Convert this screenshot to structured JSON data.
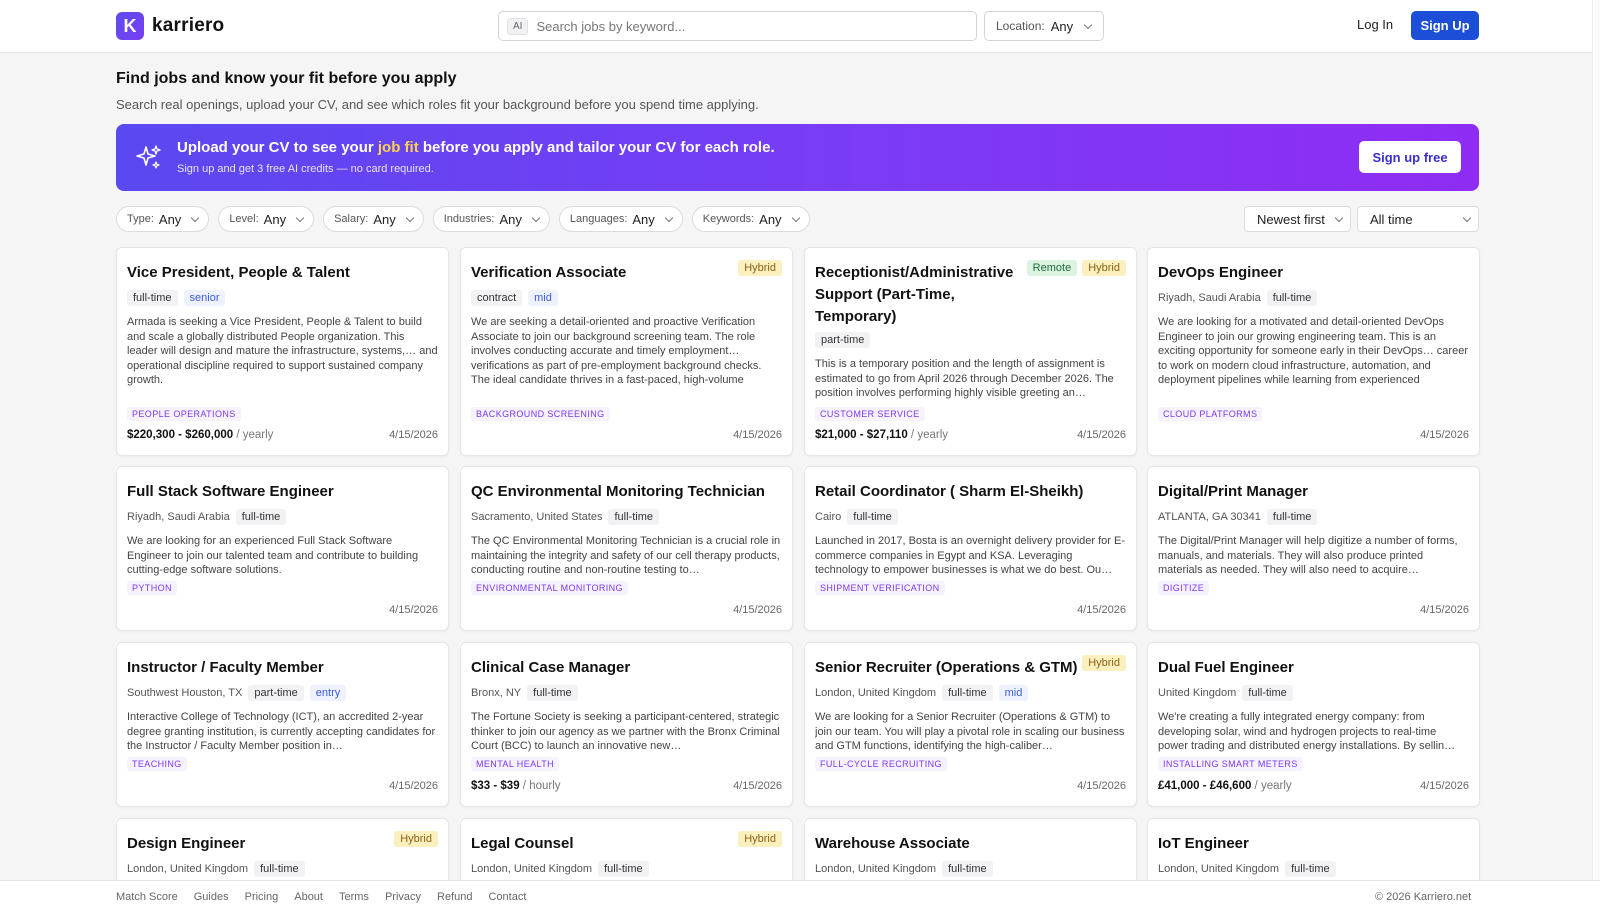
{
  "header": {
    "logo_letter": "K",
    "logo_text": "karriero",
    "search_chip": "AI",
    "search_placeholder": "Search jobs by keyword...",
    "location_label": "Location:",
    "location_value": "Any",
    "login": "Log In",
    "signup": "Sign Up"
  },
  "hero": {
    "title": "Find jobs and know your fit before you apply",
    "subtitle": "Search real openings, upload your CV, and see which roles fit your background before you spend time applying."
  },
  "banner": {
    "title_pre": "Upload your CV to see your ",
    "title_highlight": "job fit",
    "title_post": " before you apply and tailor your CV for each role.",
    "subtitle": "Sign up and get 3 free AI credits — no card required.",
    "button": "Sign up free",
    "icon": "sparkles-icon"
  },
  "filters": [
    {
      "label": "Type:",
      "value": "Any"
    },
    {
      "label": "Level:",
      "value": "Any"
    },
    {
      "label": "Salary:",
      "value": "Any"
    },
    {
      "label": "Industries:",
      "value": "Any"
    },
    {
      "label": "Languages:",
      "value": "Any"
    },
    {
      "label": "Keywords:",
      "value": "Any"
    }
  ],
  "sort": {
    "order": "Newest first",
    "range": "All time"
  },
  "jobs": [
    {
      "title": "Vice President, People & Talent",
      "badges": [],
      "location": "",
      "tags": [
        "full-time"
      ],
      "level": "senior",
      "desc": "Armada is seeking a Vice President, People & Talent to build and scale a globally distributed People organization. This leader will design and mature the infrastructure, systems,… and operational discipline required to support sustained company growth.",
      "skill": "PEOPLE OPERATIONS",
      "salary": "$220,300 - $260,000",
      "per": " / yearly",
      "date": "4/15/2026"
    },
    {
      "title": "Verification Associate",
      "badges": [
        "Hybrid"
      ],
      "location": "",
      "tags": [
        "contract"
      ],
      "level": "mid",
      "desc": "We are seeking a detail-oriented and proactive Verification Associate to join our background screening team. The role involves conducting accurate and timely employment… verifications as part of pre-employment background checks. The ideal candidate thrives in a fast-paced, high-volume environment and demonstrates strong analytical and",
      "skill": "BACKGROUND SCREENING",
      "salary": "",
      "per": "",
      "date": "4/15/2026"
    },
    {
      "title": "Receptionist/Administrative Support (Part-Time, Temporary)",
      "badges": [
        "Remote",
        "Hybrid"
      ],
      "location": "",
      "tags": [
        "part-time"
      ],
      "level": "",
      "desc": "This is a temporary position and the length of assignment is estimated to go from April 2026 through December 2026. The position involves performing highly visible greeting an…",
      "skill": "CUSTOMER SERVICE",
      "salary": "$21,000 - $27,110",
      "per": " / yearly",
      "date": "4/15/2026"
    },
    {
      "title": "DevOps Engineer",
      "badges": [],
      "location": "Riyadh, Saudi Arabia",
      "tags": [
        "full-time"
      ],
      "level": "",
      "desc": "We are looking for a motivated and detail-oriented DevOps Engineer to join our growing engineering team. This is an exciting opportunity for someone early in their DevOps… career to work on modern cloud infrastructure, automation, and deployment pipelines while learning from experienced engineers.",
      "skill": "CLOUD PLATFORMS",
      "salary": "",
      "per": "",
      "date": "4/15/2026"
    },
    {
      "title": "Full Stack Software Engineer",
      "badges": [],
      "location": "Riyadh, Saudi Arabia",
      "tags": [
        "full-time"
      ],
      "level": "",
      "desc": "We are looking for an experienced Full Stack Software Engineer to join our talented team and contribute to building cutting-edge software solutions.",
      "skill": "PYTHON",
      "salary": "",
      "per": "",
      "date": "4/15/2026"
    },
    {
      "title": "QC Environmental Monitoring Technician",
      "badges": [],
      "location": "Sacramento, United States",
      "tags": [
        "full-time"
      ],
      "level": "",
      "desc": "The QC Environmental Monitoring Technician is a crucial role in maintaining the integrity and safety of our cell therapy products, conducting routine and non-routine testing to…",
      "skill": "ENVIRONMENTAL MONITORING",
      "salary": "",
      "per": "",
      "date": "4/15/2026"
    },
    {
      "title": "Retail Coordinator ( Sharm El-Sheikh)",
      "badges": [],
      "location": "Cairo",
      "tags": [
        "full-time"
      ],
      "level": "",
      "desc": "Launched in 2017, Bosta is an overnight delivery provider for E-commerce companies in Egypt and KSA. Leveraging technology to empower businesses is what we do best. Ou…",
      "skill": "SHIPMENT VERIFICATION",
      "salary": "",
      "per": "",
      "date": "4/15/2026"
    },
    {
      "title": "Digital/Print Manager",
      "badges": [],
      "location": "ATLANTA, GA 30341",
      "tags": [
        "full-time"
      ],
      "level": "",
      "desc": "The Digital/Print Manager will help digitize a number of forms, manuals, and materials. They will also produce printed materials as needed. They will also need to acquire…",
      "skill": "DIGITIZE",
      "salary": "",
      "per": "",
      "date": "4/15/2026"
    },
    {
      "title": "Instructor / Faculty Member",
      "badges": [],
      "location": "Southwest Houston, TX",
      "tags": [
        "part-time"
      ],
      "level": "entry",
      "desc": "Interactive College of Technology (ICT), an accredited 2-year degree granting institution, is currently accepting candidates for the Instructor / Faculty Member position in…",
      "skill": "TEACHING",
      "salary": "",
      "per": "",
      "date": "4/15/2026"
    },
    {
      "title": "Clinical Case Manager",
      "badges": [],
      "location": "Bronx, NY",
      "tags": [
        "full-time"
      ],
      "level": "",
      "desc": "The Fortune Society is seeking a participant-centered, strategic thinker to join our agency as we partner with the Bronx Criminal Court (BCC) to launch an innovative new…",
      "skill": "MENTAL HEALTH",
      "salary": "$33 - $39",
      "per": " / hourly",
      "date": "4/15/2026"
    },
    {
      "title": "Senior Recruiter (Operations & GTM)",
      "badges": [
        "Hybrid"
      ],
      "location": "London, United Kingdom",
      "tags": [
        "full-time"
      ],
      "level": "mid",
      "desc": "We are looking for a Senior Recruiter (Operations & GTM) to join our team. You will play a pivotal role in scaling our business and GTM functions, identifying the high-caliber…",
      "skill": "FULL-CYCLE RECRUITING",
      "salary": "",
      "per": "",
      "date": "4/15/2026"
    },
    {
      "title": "Dual Fuel Engineer",
      "badges": [],
      "location": "United Kingdom",
      "tags": [
        "full-time"
      ],
      "level": "",
      "desc": "We're creating a fully integrated energy company: from developing solar, wind and hydrogen projects to real-time power trading and distributed energy installations. By sellin…",
      "skill": "INSTALLING SMART METERS",
      "salary": "£41,000 - £46,600",
      "per": " / yearly",
      "date": "4/15/2026"
    },
    {
      "title": "Design Engineer",
      "badges": [
        "Hybrid"
      ],
      "location": "London, United Kingdom",
      "tags": [
        "full-time"
      ],
      "level": "",
      "desc": "",
      "skill": "",
      "salary": "",
      "per": "",
      "date": ""
    },
    {
      "title": "Legal Counsel",
      "badges": [
        "Hybrid"
      ],
      "location": "London, United Kingdom",
      "tags": [
        "full-time"
      ],
      "level": "",
      "desc": "",
      "skill": "",
      "salary": "",
      "per": "",
      "date": ""
    },
    {
      "title": "Warehouse Associate",
      "badges": [],
      "location": "London, United Kingdom",
      "tags": [
        "full-time"
      ],
      "level": "",
      "desc": "",
      "skill": "",
      "salary": "",
      "per": "",
      "date": ""
    },
    {
      "title": "IoT Engineer",
      "badges": [],
      "location": "London, United Kingdom",
      "tags": [
        "full-time"
      ],
      "level": "",
      "desc": "",
      "skill": "",
      "salary": "",
      "per": "",
      "date": ""
    }
  ],
  "footer": {
    "links": [
      "Match Score",
      "Guides",
      "Pricing",
      "About",
      "Terms",
      "Privacy",
      "Refund",
      "Contact"
    ],
    "copyright": "© 2026 Karriero.net"
  }
}
